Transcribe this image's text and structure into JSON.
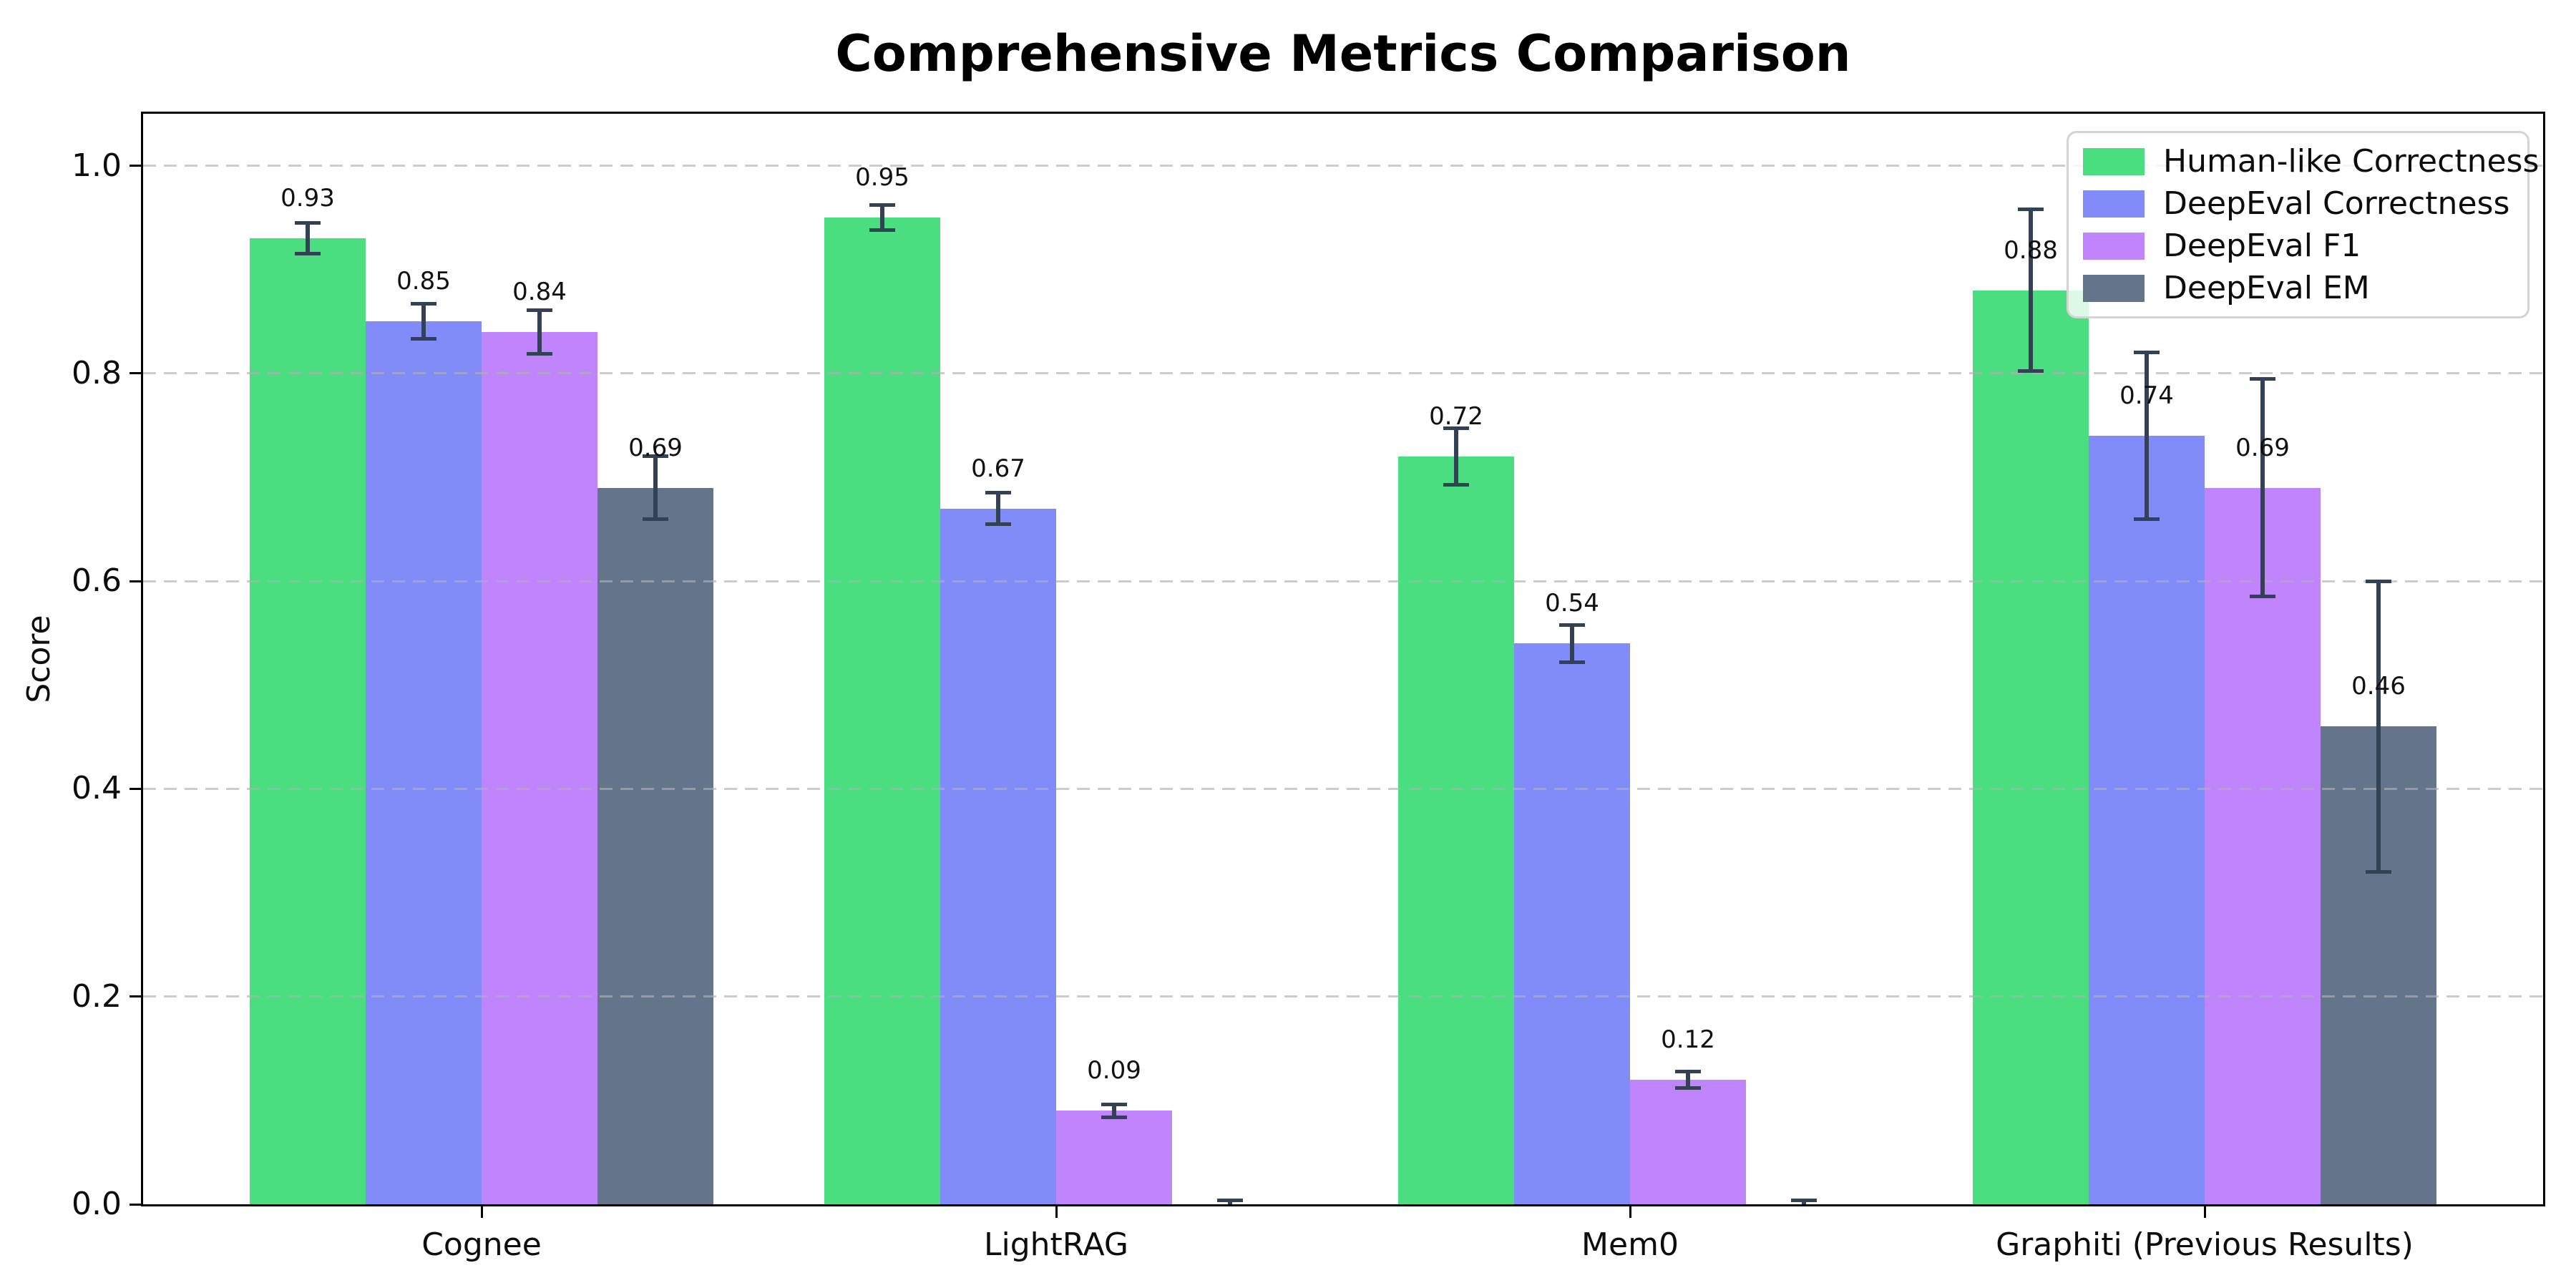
{
  "title": "Comprehensive Metrics Comparison",
  "ylabel": "Score",
  "chart_data": {
    "type": "bar",
    "title": "Comprehensive Metrics Comparison",
    "xlabel": "",
    "ylabel": "Score",
    "categories": [
      "Cognee",
      "LightRAG",
      "Mem0",
      "Graphiti (Previous Results)"
    ],
    "series": [
      {
        "name": "Human-like Correctness",
        "color": "#4ade80",
        "values": [
          0.93,
          0.95,
          0.72,
          0.88
        ],
        "errors": [
          0.015,
          0.012,
          0.027,
          0.078
        ],
        "labels": [
          "0.93",
          "0.95",
          "0.72",
          "0.88"
        ]
      },
      {
        "name": "DeepEval Correctness",
        "color": "#818cf8",
        "values": [
          0.85,
          0.67,
          0.54,
          0.74
        ],
        "errors": [
          0.017,
          0.015,
          0.018,
          0.08
        ],
        "labels": [
          "0.85",
          "0.67",
          "0.54",
          "0.74"
        ]
      },
      {
        "name": "DeepEval F1",
        "color": "#c084fc",
        "values": [
          0.84,
          0.09,
          0.12,
          0.69
        ],
        "errors": [
          0.021,
          0.006,
          0.008,
          0.105
        ],
        "labels": [
          "0.84",
          "0.09",
          "0.12",
          "0.69"
        ]
      },
      {
        "name": "DeepEval EM",
        "color": "#64748b",
        "values": [
          0.69,
          0.0,
          0.0,
          0.46
        ],
        "errors": [
          0.03,
          0.004,
          0.004,
          0.14
        ],
        "labels": [
          "0.69",
          "",
          "",
          "0.46"
        ]
      }
    ],
    "ylim": [
      0,
      1.05
    ],
    "yticks": [
      {
        "value": 0.0,
        "label": "0.0"
      },
      {
        "value": 0.2,
        "label": "0.2"
      },
      {
        "value": 0.4,
        "label": "0.4"
      },
      {
        "value": 0.6,
        "label": "0.6"
      },
      {
        "value": 0.8,
        "label": "0.8"
      },
      {
        "value": 1.0,
        "label": "1.0"
      }
    ],
    "grid": "horizontal dashed, drawn above bars",
    "legend_position": "upper right",
    "errorbar_color": "#334155",
    "errorbar_capsize_px": 36
  }
}
